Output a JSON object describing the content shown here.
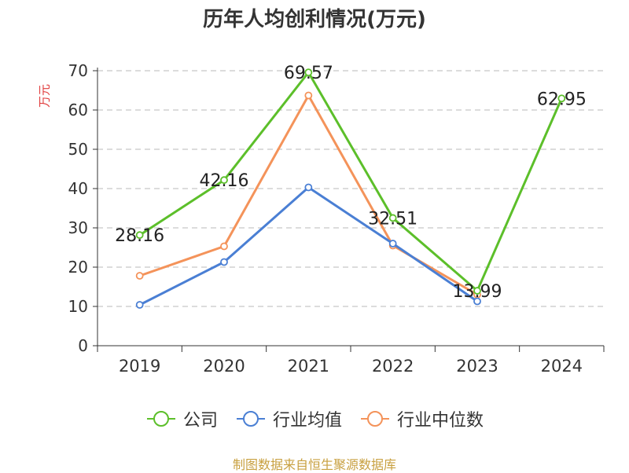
{
  "chart_data": {
    "type": "line",
    "title": "历年人均创利情况(万元)",
    "ylabel": "万元",
    "xlabel": "",
    "categories": [
      "2019",
      "2020",
      "2021",
      "2022",
      "2023",
      "2024"
    ],
    "ylim": [
      0,
      70
    ],
    "yticks": [
      0,
      10,
      20,
      30,
      40,
      50,
      60,
      70
    ],
    "grid": true,
    "legend_position": "bottom",
    "series": [
      {
        "name": "公司",
        "color": "#5cbf2a",
        "values": [
          28.16,
          42.16,
          69.57,
          32.51,
          13.99,
          62.95
        ],
        "labels": [
          "28.16",
          "42.16",
          "69.57",
          "32.51",
          "13.99",
          "62.95"
        ]
      },
      {
        "name": "行业均值",
        "color": "#4a7fd4",
        "values": [
          10.4,
          21.3,
          40.3,
          26.0,
          11.3,
          null
        ]
      },
      {
        "name": "行业中位数",
        "color": "#f4935a",
        "values": [
          17.8,
          25.3,
          63.7,
          25.5,
          13.0,
          null
        ]
      }
    ]
  },
  "source": "制图数据来自恒生聚源数据库"
}
